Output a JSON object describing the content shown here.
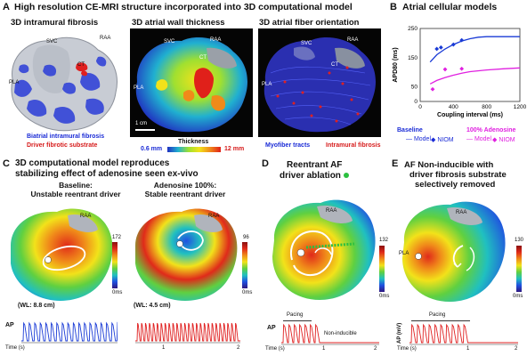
{
  "panelA": {
    "letter": "A",
    "title": "High resolution CE-MRI structure incorporated into 3D computational model",
    "sub1": "3D intramural fibrosis",
    "sub2": "3D atrial wall thickness",
    "sub3": "3D atrial fiber orientation",
    "labels1": {
      "svc": "SVC",
      "raa": "RAA",
      "ct": "CT",
      "pla": "PLA"
    },
    "labels2": {
      "svc": "SVC",
      "raa": "RAA",
      "ct": "CT",
      "pla": "PLA"
    },
    "labels3": {
      "svc": "SVC",
      "raa": "RAA",
      "ct": "CT",
      "pla": "PLA"
    },
    "legend1a": "Biatrial intramural fibrosis",
    "legend1b": "Driver fibrotic substrate",
    "scale": "1 cm",
    "thickness_label": "Thickness",
    "thickness_min": "0.6 mm",
    "thickness_max": "12 mm",
    "legend3a": "Myofiber tracts",
    "legend3b": "Intramural fibrosis",
    "colors": {
      "blue": "#1a2bd6",
      "red": "#d61a1a"
    }
  },
  "panelB": {
    "letter": "B",
    "title": "Atrial cellular models",
    "legend_baseline": "Baseline",
    "legend_adenosine": "100% Adenosine",
    "legend_model_b": "— Model",
    "legend_niom_b": "◆ NIOM",
    "legend_model_a": "— Model",
    "legend_niom_a": "◆ NIOM",
    "colors": {
      "baseline": "#1a3bd6",
      "adenosine": "#e020e0"
    }
  },
  "chart_data": {
    "type": "line",
    "xlabel": "Coupling interval (ms)",
    "ylabel": "APD80 (ms)",
    "xlim": [
      0,
      1200
    ],
    "ylim": [
      0,
      250
    ],
    "xticks": [
      "0",
      "400",
      "800",
      "1200"
    ],
    "yticks": [
      "0",
      "50",
      "150",
      "250"
    ],
    "series": [
      {
        "name": "Baseline",
        "kind": "model",
        "x": [
          120,
          200,
          300,
          400,
          500,
          600,
          700,
          800,
          1000,
          1200
        ],
        "y": [
          135,
          160,
          180,
          195,
          207,
          215,
          220,
          222,
          222,
          222
        ]
      },
      {
        "name": "Baseline",
        "kind": "niom",
        "x": [
          200,
          250,
          400,
          500
        ],
        "y": [
          180,
          185,
          195,
          210
        ]
      },
      {
        "name": "100% Adenosine",
        "kind": "model",
        "x": [
          120,
          200,
          300,
          400,
          500,
          600,
          800,
          1000,
          1200
        ],
        "y": [
          60,
          72,
          82,
          90,
          97,
          102,
          108,
          112,
          115
        ]
      },
      {
        "name": "100% Adenosine",
        "kind": "niom",
        "x": [
          150,
          300,
          500
        ],
        "y": [
          42,
          110,
          112
        ]
      }
    ]
  },
  "panelC": {
    "letter": "C",
    "title1": "3D computational model reproduces",
    "title2": "stabilizing effect of adenosine seen ex-vivo",
    "baseline_t1": "Baseline:",
    "baseline_t2": "Unstable reentrant driver",
    "aden_t1": "Adenosine 100%:",
    "aden_t2": "Stable reentrant driver",
    "wl1": "(WL: 8.8 cm)",
    "wl2": "(WL: 4.5 cm)",
    "cb1_max": "172",
    "cb2_max": "96",
    "cb_min": "0ms",
    "cb_min2": "0ms",
    "ap": "AP",
    "time": "Time (s)",
    "t1": "1",
    "t2": "2",
    "raa": "RAA",
    "raa2": "RAA"
  },
  "panelD": {
    "letter": "D",
    "title1": "Reentrant AF",
    "title2": "driver ablation",
    "cb_max": "132",
    "cb_min": "0ms",
    "raa": "RAA",
    "ap": "AP",
    "pacing": "Pacing",
    "noninducible": "Non-inducible",
    "time": "Time (s)",
    "t1": "1",
    "t2": "2"
  },
  "panelE": {
    "letter": "E",
    "title1": "AF Non-inducible with",
    "title2": "driver fibrosis substrate",
    "title3": "selectively removed",
    "cb_max": "130",
    "cb_min": "0ms",
    "raa": "RAA",
    "pla": "PLA",
    "ap": "AP (mV)",
    "pacing": "Pacing",
    "time": "Time (s)",
    "t1": "1",
    "t2": "2"
  }
}
